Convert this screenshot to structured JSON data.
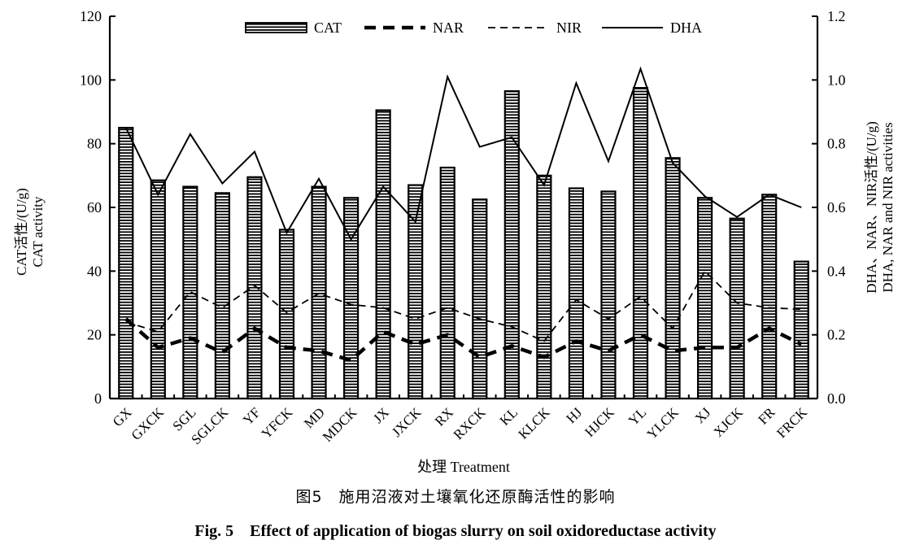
{
  "chart_data": {
    "type": "bar",
    "categories": [
      "GX",
      "GXCK",
      "SGL",
      "SGLCK",
      "YF",
      "YFCK",
      "MD",
      "MDCK",
      "JX",
      "JXCK",
      "RX",
      "RXCK",
      "KL",
      "KLCK",
      "HJ",
      "HJCK",
      "YL",
      "YLCK",
      "XJ",
      "XJCK",
      "FR",
      "FRCK"
    ],
    "series": [
      {
        "name": "CAT",
        "type": "bar",
        "axis": "left",
        "values": [
          85,
          68.5,
          66.5,
          64.5,
          69.5,
          53,
          66.5,
          63,
          90.5,
          67,
          72.5,
          62.5,
          96.5,
          70,
          66,
          65,
          97.5,
          75.5,
          63,
          56.5,
          64,
          43
        ]
      },
      {
        "name": "NAR",
        "type": "line",
        "axis": "right",
        "style": "thick-dashed",
        "values": [
          0.25,
          0.16,
          0.19,
          0.145,
          0.22,
          0.16,
          0.15,
          0.12,
          0.21,
          0.17,
          0.2,
          0.13,
          0.165,
          0.13,
          0.18,
          0.15,
          0.2,
          0.15,
          0.16,
          0.16,
          0.22,
          0.17
        ]
      },
      {
        "name": "NIR",
        "type": "line",
        "axis": "right",
        "style": "thin-dashed",
        "values": [
          0.24,
          0.21,
          0.335,
          0.285,
          0.355,
          0.27,
          0.33,
          0.295,
          0.285,
          0.25,
          0.285,
          0.25,
          0.225,
          0.18,
          0.31,
          0.25,
          0.32,
          0.22,
          0.4,
          0.3,
          0.285,
          0.28
        ]
      },
      {
        "name": "DHA",
        "type": "line",
        "axis": "right",
        "style": "solid",
        "values": [
          0.85,
          0.64,
          0.83,
          0.675,
          0.775,
          0.52,
          0.69,
          0.5,
          0.665,
          0.555,
          1.01,
          0.79,
          0.82,
          0.67,
          0.99,
          0.745,
          1.035,
          0.74,
          0.635,
          0.57,
          0.64,
          0.6
        ]
      }
    ],
    "ylim_left": [
      0,
      120
    ],
    "yticks_left": [
      "0",
      "20",
      "40",
      "60",
      "80",
      "100",
      "120"
    ],
    "ylim_right": [
      0,
      1.2
    ],
    "yticks_right": [
      "0.0",
      "0.2",
      "0.4",
      "0.6",
      "0.8",
      "1.0",
      "1.2"
    ],
    "xlabel": "处理 Treatment",
    "ylabel_left": [
      "CAT活性/(U/g)",
      "CAT activity"
    ],
    "ylabel_right": [
      "DHA、NAR、NIR活性/(U/g)",
      "DHA, NAR and NIR activities"
    ],
    "legend_position": "top",
    "grid": false
  },
  "caption_cn": "图5　施用沼液对土壤氧化还原酶活性的影响",
  "caption_en": "Fig. 5　Effect of application of biogas slurry on soil oxidoreductase activity"
}
